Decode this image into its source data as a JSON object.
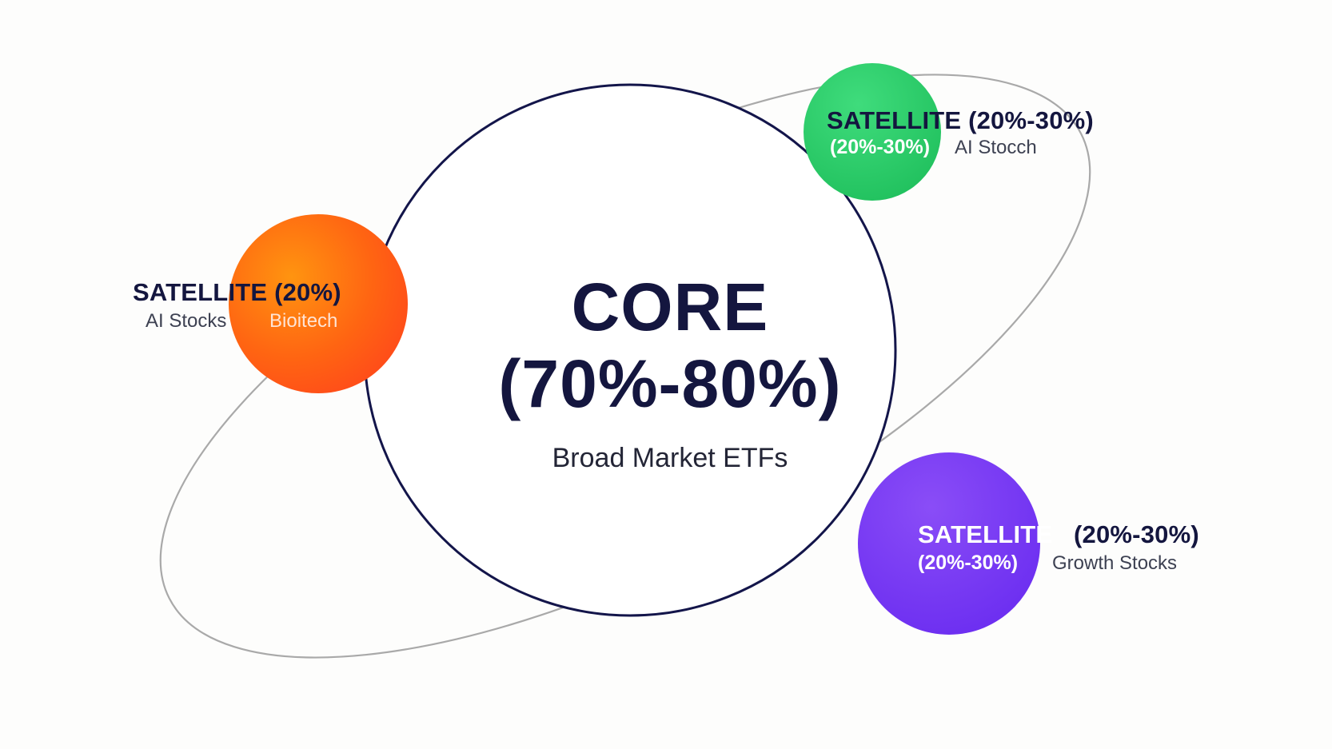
{
  "core": {
    "title_line1": "CORE",
    "title_line2": "(70%-80%)",
    "subtitle": "Broad Market ETFs"
  },
  "satellites": {
    "top_right": {
      "title": "SATELLITE (20%-30%)",
      "percent": "(20%-30%)",
      "subtitle": "AI Stocch"
    },
    "left": {
      "title": "SATELLITE (20%)",
      "subtitle_outside": "AI Stocks",
      "subtitle_inside": "Bioitech"
    },
    "bottom_right": {
      "title_part1": "SATELLITE",
      "title_part2": "(20%-30%)",
      "percent": "(20%-30%)",
      "subtitle": "Growth Stocks"
    }
  },
  "colors": {
    "core_outline": "#13154a",
    "orbit": "#a9a9a9",
    "satellite_left": "#ff5a14",
    "satellite_top_right": "#2ccf6a",
    "satellite_bottom_right": "#7a3cf2",
    "text_dark": "#14163f"
  }
}
